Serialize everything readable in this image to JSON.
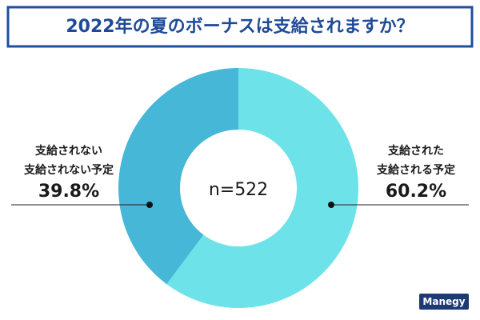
{
  "chart_data": {
    "type": "donut",
    "title": "2022年の夏のボーナスは支給されますか？",
    "center_label": "n=522",
    "categories": [
      [
        "支給された",
        "支給される予定"
      ],
      [
        "支給されない",
        "支給されない予定"
      ]
    ],
    "values": [
      60.2,
      39.8
    ],
    "value_labels": [
      "60.2%",
      "39.8%"
    ],
    "colors": [
      "#6de3e9",
      "#46b7d6"
    ]
  },
  "logo": "Manegy"
}
